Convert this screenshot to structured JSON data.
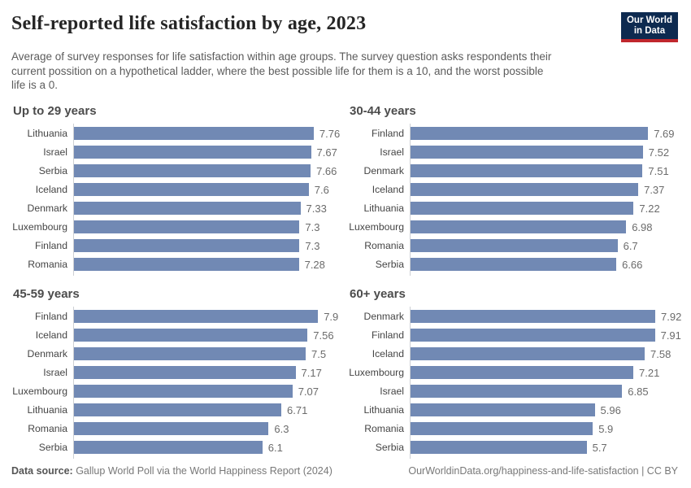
{
  "header": {
    "title": "Self-reported life satisfaction by age, 2023",
    "subtitle_lines": [
      "Average of survey responses for life satisfaction within age groups. The survey question asks respondents their",
      "current possition on a hypothetical ladder, where the best possible life for them is a 10, and the worst possible",
      "life is a 0."
    ],
    "logo": {
      "line1": "Our World",
      "line2": "in Data"
    }
  },
  "chart_data": [
    {
      "type": "bar",
      "orientation": "horizontal",
      "title": "Up to 29 years",
      "categories": [
        "Lithuania",
        "Israel",
        "Serbia",
        "Iceland",
        "Denmark",
        "Luxembourg",
        "Finland",
        "Romania"
      ],
      "values": [
        7.76,
        7.67,
        7.66,
        7.6,
        7.33,
        7.3,
        7.3,
        7.28
      ],
      "xlim": [
        0,
        8
      ],
      "grid": false,
      "data_labels": true
    },
    {
      "type": "bar",
      "orientation": "horizontal",
      "title": "30-44 years",
      "categories": [
        "Finland",
        "Israel",
        "Denmark",
        "Iceland",
        "Lithuania",
        "Luxembourg",
        "Romania",
        "Serbia"
      ],
      "values": [
        7.69,
        7.52,
        7.51,
        7.37,
        7.22,
        6.98,
        6.7,
        6.66
      ],
      "xlim": [
        0,
        8
      ],
      "grid": false,
      "data_labels": true
    },
    {
      "type": "bar",
      "orientation": "horizontal",
      "title": "45-59 years",
      "categories": [
        "Finland",
        "Iceland",
        "Denmark",
        "Israel",
        "Luxembourg",
        "Lithuania",
        "Romania",
        "Serbia"
      ],
      "values": [
        7.9,
        7.56,
        7.5,
        7.17,
        7.07,
        6.71,
        6.3,
        6.1
      ],
      "xlim": [
        0,
        8
      ],
      "grid": false,
      "data_labels": true
    },
    {
      "type": "bar",
      "orientation": "horizontal",
      "title": "60+ years",
      "categories": [
        "Denmark",
        "Finland",
        "Iceland",
        "Luxembourg",
        "Israel",
        "Lithuania",
        "Romania",
        "Serbia"
      ],
      "values": [
        7.92,
        7.91,
        7.58,
        7.21,
        6.85,
        5.96,
        5.9,
        5.7
      ],
      "xlim": [
        0,
        8
      ],
      "grid": false,
      "data_labels": true
    }
  ],
  "style": {
    "bar_color": "#7189b4",
    "axis_color": "#cdd0d4",
    "logo_bg": "#0d2a50",
    "logo_stripe": "#c0272d"
  },
  "footer": {
    "source_label": "Data source:",
    "source_text": " Gallup World Poll via the World Happiness Report (2024)",
    "right_text": "OurWorldinData.org/happiness-and-life-satisfaction | CC BY"
  }
}
